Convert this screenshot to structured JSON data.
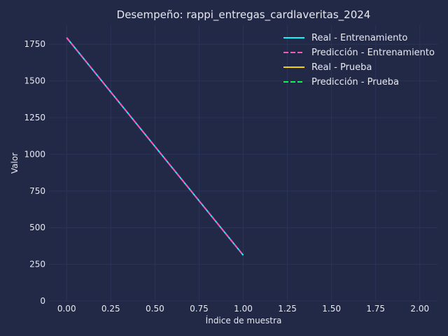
{
  "chart_data": {
    "type": "line",
    "title": "Desempeño: rappi_entregas_cardlaveritas_2024",
    "xlabel": "Índice de muestra",
    "ylabel": "Valor",
    "xlim": [
      -0.1,
      2.1
    ],
    "ylim": [
      0,
      1880
    ],
    "x_ticks": [
      0.0,
      0.25,
      0.5,
      0.75,
      1.0,
      1.25,
      1.5,
      1.75,
      2.0
    ],
    "x_tick_labels": [
      "0.00",
      "0.25",
      "0.50",
      "0.75",
      "1.00",
      "1.25",
      "1.50",
      "1.75",
      "2.00"
    ],
    "y_ticks": [
      0,
      250,
      500,
      750,
      1000,
      1250,
      1500,
      1750
    ],
    "y_tick_labels": [
      "0",
      "250",
      "500",
      "750",
      "1000",
      "1250",
      "1500",
      "1750"
    ],
    "grid": true,
    "legend_position": "top-right",
    "series": [
      {
        "name": "Real - Entrenamiento",
        "color": "#08F7FE",
        "dash": "solid",
        "x": [
          0,
          1
        ],
        "values": [
          1795,
          312
        ]
      },
      {
        "name": "Predicción - Entrenamiento",
        "color": "#FE53BB",
        "dash": "dashed",
        "x": [
          0,
          1
        ],
        "values": [
          1795,
          312
        ]
      },
      {
        "name": "Real - Prueba",
        "color": "#F5D300",
        "dash": "solid",
        "x": [],
        "values": []
      },
      {
        "name": "Predicción - Prueba",
        "color": "#00FF41",
        "dash": "dashed",
        "x": [],
        "values": []
      }
    ],
    "colors": {
      "background": "#212946",
      "grid": "#2A3459",
      "text": "#E8E8F0"
    }
  }
}
